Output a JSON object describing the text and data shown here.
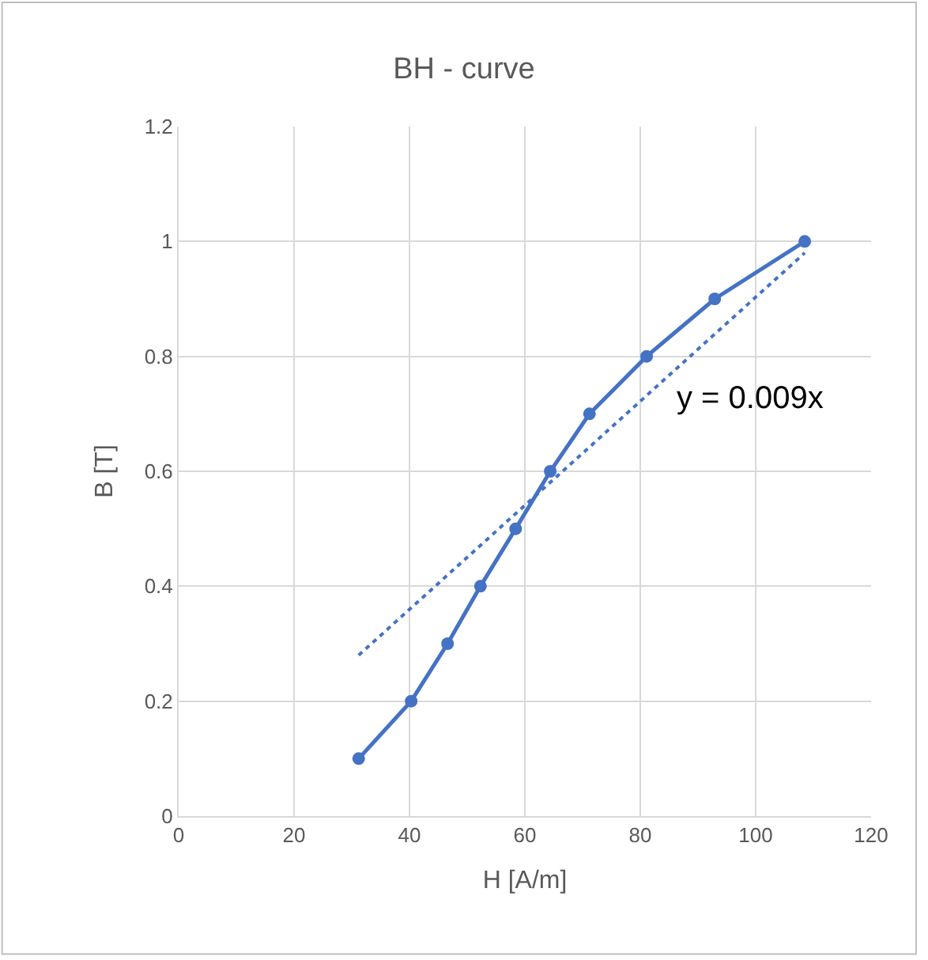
{
  "chart_data": {
    "type": "line",
    "title": "BH - curve",
    "xlabel": "H [A/m]",
    "ylabel": "B [T]",
    "x": [
      31.2,
      40.3,
      46.6,
      52.3,
      58.4,
      64.4,
      71.2,
      81.1,
      92.9,
      108.5
    ],
    "series": [
      {
        "color": "#4472c4",
        "marker": "circle",
        "line_style": "solid",
        "values": [
          0.1,
          0.2,
          0.3,
          0.4,
          0.5,
          0.6,
          0.7,
          0.8,
          0.9,
          1.0
        ]
      },
      {
        "type": "line",
        "color": "#4472c4",
        "marker": "none",
        "line_style": "dotted",
        "x": [
          31.2,
          108.5
        ],
        "values": [
          0.28,
          0.98
        ]
      }
    ],
    "annotations": [
      "y = 0.009x"
    ],
    "xlim": [
      0,
      120
    ],
    "xticks": [
      0,
      20,
      40,
      60,
      80,
      100,
      120
    ],
    "ylim": [
      0,
      1.2
    ],
    "yticks": [
      0,
      0.2,
      0.4,
      0.6,
      0.8,
      1,
      1.2
    ],
    "grid": true
  }
}
